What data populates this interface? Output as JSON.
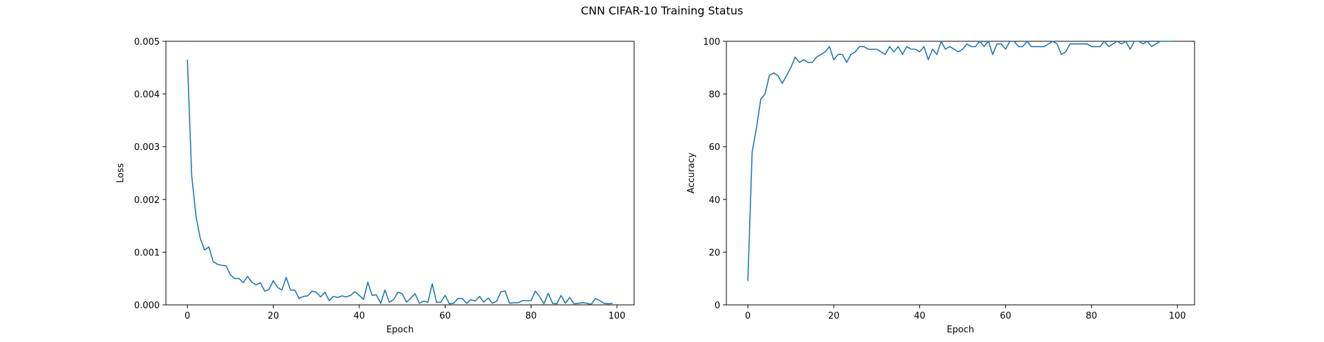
{
  "figure": {
    "title": "CNN CIFAR-10 Training Status"
  },
  "chart_data": [
    {
      "type": "line",
      "title": "",
      "xlabel": "Epoch",
      "ylabel": "Loss",
      "xlim": [
        -5,
        104
      ],
      "ylim": [
        0,
        0.005
      ],
      "xticks": [
        0,
        20,
        40,
        60,
        80,
        100
      ],
      "yticks": [
        0,
        0.001,
        0.002,
        0.003,
        0.004,
        0.005
      ],
      "xtick_labels": [
        "0",
        "20",
        "40",
        "60",
        "80",
        "100"
      ],
      "ytick_labels": [
        "0.000",
        "0.001",
        "0.002",
        "0.003",
        "0.004",
        "0.005"
      ],
      "series": [
        {
          "name": "loss",
          "color": "#1f77b4",
          "values": [
            0.00465,
            0.00245,
            0.00168,
            0.00126,
            0.00104,
            0.0011,
            0.00082,
            0.00077,
            0.00075,
            0.00074,
            0.00057,
            0.0005,
            0.0005,
            0.00042,
            0.00054,
            0.00043,
            0.00038,
            0.00042,
            0.00026,
            0.00029,
            0.00046,
            0.00033,
            0.00028,
            0.00052,
            0.00028,
            0.00028,
            0.00012,
            0.00016,
            0.00017,
            0.00026,
            0.00024,
            0.00015,
            0.00024,
            8e-05,
            0.00016,
            0.00014,
            0.00017,
            0.00015,
            0.00018,
            0.00025,
            0.00018,
            0.0001,
            0.00043,
            0.00018,
            0.00019,
            3e-05,
            0.00028,
            5e-05,
            0.0001,
            0.00024,
            0.00021,
            5e-05,
            0.00013,
            0.00021,
            3e-05,
            7e-05,
            5e-05,
            0.0004,
            5e-05,
            5e-05,
            0.00018,
            2e-05,
            3e-05,
            0.00012,
            0.00012,
            3e-05,
            0.0001,
            7e-05,
            0.00016,
            5e-05,
            0.00013,
            3e-05,
            7e-05,
            0.00025,
            0.00026,
            3e-05,
            4e-05,
            4e-05,
            8e-05,
            8e-05,
            8e-05,
            0.00026,
            0.00016,
            2e-05,
            0.00022,
            3e-05,
            2e-05,
            0.00018,
            3e-05,
            0.00014,
            2e-05,
            3e-05,
            4e-05,
            3e-05,
            1e-05,
            0.00012,
            8e-05,
            3e-05,
            2e-05,
            3e-05
          ]
        }
      ]
    },
    {
      "type": "line",
      "title": "",
      "xlabel": "Epoch",
      "ylabel": "Accuracy",
      "xlim": [
        -5,
        104
      ],
      "ylim": [
        0,
        100
      ],
      "xticks": [
        0,
        20,
        40,
        60,
        80,
        100
      ],
      "yticks": [
        0,
        20,
        40,
        60,
        80,
        100
      ],
      "xtick_labels": [
        "0",
        "20",
        "40",
        "60",
        "80",
        "100"
      ],
      "ytick_labels": [
        "0",
        "20",
        "40",
        "60",
        "80",
        "100"
      ],
      "series": [
        {
          "name": "accuracy",
          "color": "#1f77b4",
          "values": [
            9,
            58,
            67,
            78,
            80,
            87,
            88,
            87,
            84,
            87,
            90,
            94,
            92,
            93,
            92,
            92,
            94,
            95,
            96,
            98,
            93,
            95,
            95,
            92,
            95,
            96,
            98,
            98,
            97,
            97,
            97,
            96,
            95,
            98,
            96,
            98,
            95,
            98,
            97,
            97,
            96,
            98,
            93,
            97,
            95,
            100,
            97,
            98,
            97,
            96,
            97,
            99,
            98,
            98,
            100,
            98,
            100,
            95,
            99,
            99,
            97,
            100,
            100,
            98,
            98,
            100,
            98,
            98,
            98,
            98,
            99,
            100,
            99,
            95,
            96,
            99,
            99,
            99,
            99,
            99,
            98,
            98,
            98,
            100,
            98,
            99,
            100,
            99,
            100,
            97,
            100,
            100,
            99,
            100,
            98,
            99,
            100,
            100,
            100,
            100
          ]
        }
      ]
    }
  ]
}
